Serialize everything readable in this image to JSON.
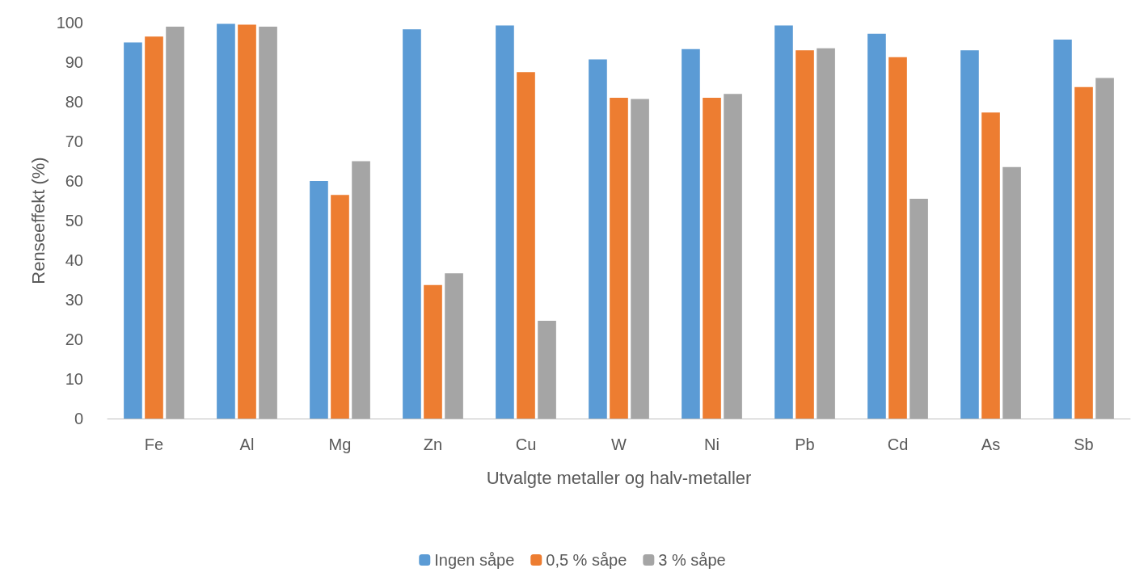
{
  "chart_data": {
    "type": "bar",
    "xlabel": "Utvalgte metaller og halv-metaller",
    "ylabel": "Renseeffekt (%)",
    "categories": [
      "Fe",
      "Al",
      "Mg",
      "Zn",
      "Cu",
      "W",
      "Ni",
      "Pb",
      "Cd",
      "As",
      "Sb"
    ],
    "series": [
      {
        "name": "Ingen såpe",
        "color": "#5b9bd5",
        "values": [
          95,
          99.7,
          60,
          98.3,
          99.3,
          90.7,
          93.3,
          99.3,
          97.2,
          93,
          95.7
        ]
      },
      {
        "name": "0,5 % såpe",
        "color": "#ed7d31",
        "values": [
          96.5,
          99.5,
          56.5,
          33.7,
          87.5,
          81,
          81,
          93,
          91.3,
          77.3,
          83.7
        ]
      },
      {
        "name": "3 % såpe",
        "color": "#a5a5a5",
        "values": [
          99,
          99,
          65,
          36.7,
          24.7,
          80.7,
          82,
          93.5,
          55.5,
          63.5,
          86
        ]
      }
    ],
    "ylim": [
      0,
      100
    ],
    "yticks": [
      0,
      10,
      20,
      30,
      40,
      50,
      60,
      70,
      80,
      90,
      100
    ],
    "grid": false,
    "legend": "bottom"
  }
}
